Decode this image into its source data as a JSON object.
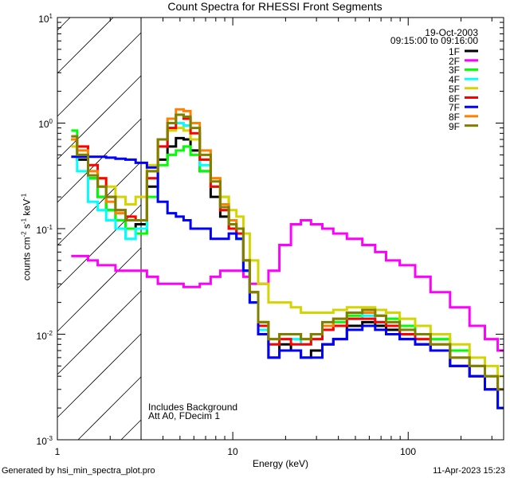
{
  "chart_data": {
    "type": "line",
    "title": "Count Spectra for RHESSI Front Segments",
    "xlabel": "Energy (keV)",
    "ylabel": "counts cm-2 s-1 keV-1",
    "ylabel_parts": {
      "base": "counts cm",
      "e1": "-2",
      "s": " s",
      "e2": "-1",
      "k": " keV",
      "e3": "-1"
    },
    "xscale": "log",
    "yscale": "log",
    "xlim": [
      1,
      350
    ],
    "ylim": [
      0.001,
      10
    ],
    "x_ticks": [
      "1",
      "10",
      "100"
    ],
    "y_ticks": [
      {
        "base": "10",
        "exp": "1"
      },
      {
        "base": "10",
        "exp": "0"
      },
      {
        "base": "10",
        "exp": "-1"
      },
      {
        "base": "10",
        "exp": "-2"
      },
      {
        "base": "10",
        "exp": "-3"
      }
    ],
    "shaded_region": [
      1,
      3
    ],
    "legend_placement": "top-right",
    "legend_header": [
      "19-Oct-2003",
      "09:15:00 to 09:16:00"
    ],
    "annotations": [
      "Includes Background",
      "Att A0, FDecim 1"
    ],
    "energy": [
      1.2,
      1.4,
      1.6,
      1.8,
      2.0,
      2.3,
      2.6,
      3.0,
      3.5,
      4.0,
      4.5,
      5.0,
      5.5,
      6.0,
      7.0,
      8.0,
      9.0,
      10,
      11,
      12,
      13,
      15,
      17,
      20,
      23,
      26,
      30,
      35,
      40,
      50,
      60,
      70,
      80,
      100,
      120,
      150,
      200,
      250,
      300,
      350
    ],
    "series": [
      {
        "name": "1F",
        "color": "#000000",
        "values": [
          0.7,
          0.45,
          0.3,
          0.2,
          0.15,
          0.12,
          0.1,
          0.11,
          0.25,
          0.45,
          0.6,
          0.72,
          0.7,
          0.55,
          0.35,
          0.2,
          0.13,
          0.1,
          0.08,
          0.04,
          0.02,
          0.01,
          0.006,
          0.008,
          0.007,
          0.006,
          0.007,
          0.008,
          0.009,
          0.012,
          0.013,
          0.012,
          0.011,
          0.009,
          0.008,
          0.007,
          0.005,
          0.004,
          0.003,
          0.002
        ]
      },
      {
        "name": "2F",
        "color": "#ff00ff",
        "values": [
          0.055,
          0.055,
          0.05,
          0.045,
          0.045,
          0.04,
          0.04,
          0.04,
          0.035,
          0.03,
          0.03,
          0.03,
          0.028,
          0.028,
          0.03,
          0.035,
          0.04,
          0.04,
          0.04,
          0.035,
          0.03,
          0.03,
          0.04,
          0.07,
          0.11,
          0.12,
          0.11,
          0.1,
          0.09,
          0.08,
          0.07,
          0.06,
          0.05,
          0.045,
          0.035,
          0.025,
          0.018,
          0.012,
          0.009,
          0.007
        ]
      },
      {
        "name": "3F",
        "color": "#00ff00",
        "values": [
          0.85,
          0.5,
          0.3,
          0.2,
          0.15,
          0.12,
          0.1,
          0.09,
          0.2,
          0.4,
          0.5,
          0.55,
          0.6,
          0.5,
          0.35,
          0.25,
          0.2,
          0.12,
          0.1,
          0.05,
          0.025,
          0.013,
          0.009,
          0.01,
          0.01,
          0.009,
          0.01,
          0.012,
          0.013,
          0.015,
          0.016,
          0.015,
          0.014,
          0.012,
          0.01,
          0.009,
          0.007,
          0.005,
          0.004,
          0.003
        ]
      },
      {
        "name": "4F",
        "color": "#00ffff",
        "values": [
          0.75,
          0.35,
          0.18,
          0.15,
          0.12,
          0.1,
          0.08,
          0.1,
          0.3,
          0.6,
          0.9,
          1.0,
          0.95,
          0.7,
          0.4,
          0.25,
          0.15,
          0.1,
          0.08,
          0.04,
          0.02,
          0.011,
          0.008,
          0.009,
          0.009,
          0.008,
          0.009,
          0.011,
          0.012,
          0.014,
          0.015,
          0.013,
          0.012,
          0.01,
          0.009,
          0.007,
          0.005,
          0.004,
          0.003,
          0.002
        ]
      },
      {
        "name": "5F",
        "color": "#d4d400",
        "values": [
          0.6,
          0.5,
          0.35,
          0.3,
          0.25,
          0.2,
          0.17,
          0.2,
          0.4,
          0.7,
          0.85,
          0.9,
          0.85,
          0.7,
          0.45,
          0.3,
          0.2,
          0.15,
          0.13,
          0.09,
          0.05,
          0.03,
          0.02,
          0.02,
          0.018,
          0.016,
          0.016,
          0.016,
          0.017,
          0.018,
          0.018,
          0.017,
          0.016,
          0.014,
          0.012,
          0.01,
          0.008,
          0.006,
          0.005,
          0.004
        ]
      },
      {
        "name": "6F",
        "color": "#ff0000",
        "values": [
          0.7,
          0.6,
          0.4,
          0.3,
          0.2,
          0.15,
          0.13,
          0.12,
          0.3,
          0.6,
          0.9,
          1.2,
          1.1,
          0.8,
          0.45,
          0.25,
          0.15,
          0.1,
          0.09,
          0.05,
          0.025,
          0.012,
          0.008,
          0.009,
          0.008,
          0.008,
          0.009,
          0.011,
          0.012,
          0.014,
          0.014,
          0.013,
          0.012,
          0.01,
          0.009,
          0.007,
          0.005,
          0.004,
          0.003,
          0.003
        ]
      },
      {
        "name": "7F",
        "color": "#0000ff",
        "values": [
          0.48,
          0.48,
          0.48,
          0.48,
          0.47,
          0.46,
          0.45,
          0.42,
          0.38,
          0.18,
          0.14,
          0.13,
          0.12,
          0.1,
          0.1,
          0.08,
          0.08,
          0.09,
          0.08,
          0.04,
          0.02,
          0.01,
          0.006,
          0.007,
          0.007,
          0.006,
          0.006,
          0.008,
          0.009,
          0.011,
          0.012,
          0.011,
          0.01,
          0.009,
          0.008,
          0.007,
          0.005,
          0.004,
          0.003,
          0.002
        ]
      },
      {
        "name": "8F",
        "color": "#ff8000",
        "values": [
          0.7,
          0.55,
          0.35,
          0.25,
          0.18,
          0.14,
          0.12,
          0.12,
          0.35,
          0.7,
          1.1,
          1.35,
          1.3,
          1.0,
          0.55,
          0.3,
          0.17,
          0.12,
          0.1,
          0.05,
          0.025,
          0.013,
          0.009,
          0.01,
          0.01,
          0.009,
          0.01,
          0.012,
          0.014,
          0.016,
          0.016,
          0.015,
          0.013,
          0.011,
          0.01,
          0.008,
          0.006,
          0.005,
          0.004,
          0.003
        ]
      },
      {
        "name": "9F",
        "color": "#808000",
        "values": [
          0.75,
          0.5,
          0.32,
          0.25,
          0.2,
          0.15,
          0.12,
          0.12,
          0.35,
          0.7,
          1.0,
          1.2,
          1.15,
          0.9,
          0.5,
          0.28,
          0.16,
          0.11,
          0.1,
          0.05,
          0.025,
          0.013,
          0.009,
          0.01,
          0.01,
          0.009,
          0.01,
          0.013,
          0.014,
          0.016,
          0.017,
          0.015,
          0.013,
          0.011,
          0.01,
          0.008,
          0.006,
          0.005,
          0.004,
          0.003
        ]
      }
    ]
  },
  "footer": {
    "generated": "Generated by hsi_min_spectra_plot.pro",
    "date": "11-Apr-2023 15:23"
  }
}
